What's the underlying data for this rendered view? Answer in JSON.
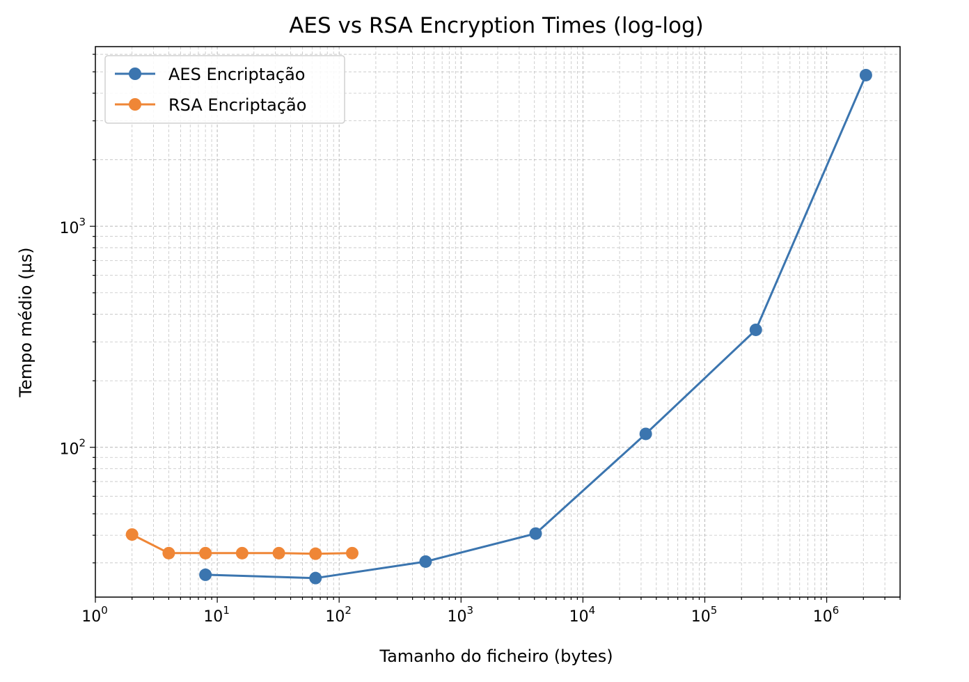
{
  "chart_data": {
    "type": "line",
    "title": "AES vs RSA Encryption Times (log-log)",
    "xlabel": "Tamanho do ficheiro (bytes)",
    "ylabel": "Tempo médio (µs)",
    "xscale": "log",
    "yscale": "log",
    "xlim": [
      1,
      4000000
    ],
    "ylim": [
      21,
      6500
    ],
    "grid": true,
    "grid_minor": true,
    "legend_position": "upper-left",
    "x_ticks": [
      {
        "base": "10",
        "exp": "0",
        "value": 1
      },
      {
        "base": "10",
        "exp": "1",
        "value": 10
      },
      {
        "base": "10",
        "exp": "2",
        "value": 100
      },
      {
        "base": "10",
        "exp": "3",
        "value": 1000
      },
      {
        "base": "10",
        "exp": "4",
        "value": 10000
      },
      {
        "base": "10",
        "exp": "5",
        "value": 100000
      },
      {
        "base": "10",
        "exp": "6",
        "value": 1000000
      }
    ],
    "y_ticks": [
      {
        "base": "10",
        "exp": "2",
        "value": 100
      },
      {
        "base": "10",
        "exp": "3",
        "value": 1000
      }
    ],
    "series": [
      {
        "name": "AES Encriptação",
        "color": "#3b75af",
        "marker": "circle",
        "x": [
          8,
          64,
          512,
          4096,
          32768,
          262144,
          2097152
        ],
        "y": [
          26.5,
          25.6,
          30.4,
          40.7,
          115,
          340,
          4830
        ]
      },
      {
        "name": "RSA Encriptação",
        "color": "#ef8636",
        "marker": "circle",
        "x": [
          2,
          4,
          8,
          16,
          32,
          64,
          128
        ],
        "y": [
          40.3,
          33.2,
          33.2,
          33.2,
          33.2,
          33.0,
          33.2
        ]
      }
    ]
  }
}
